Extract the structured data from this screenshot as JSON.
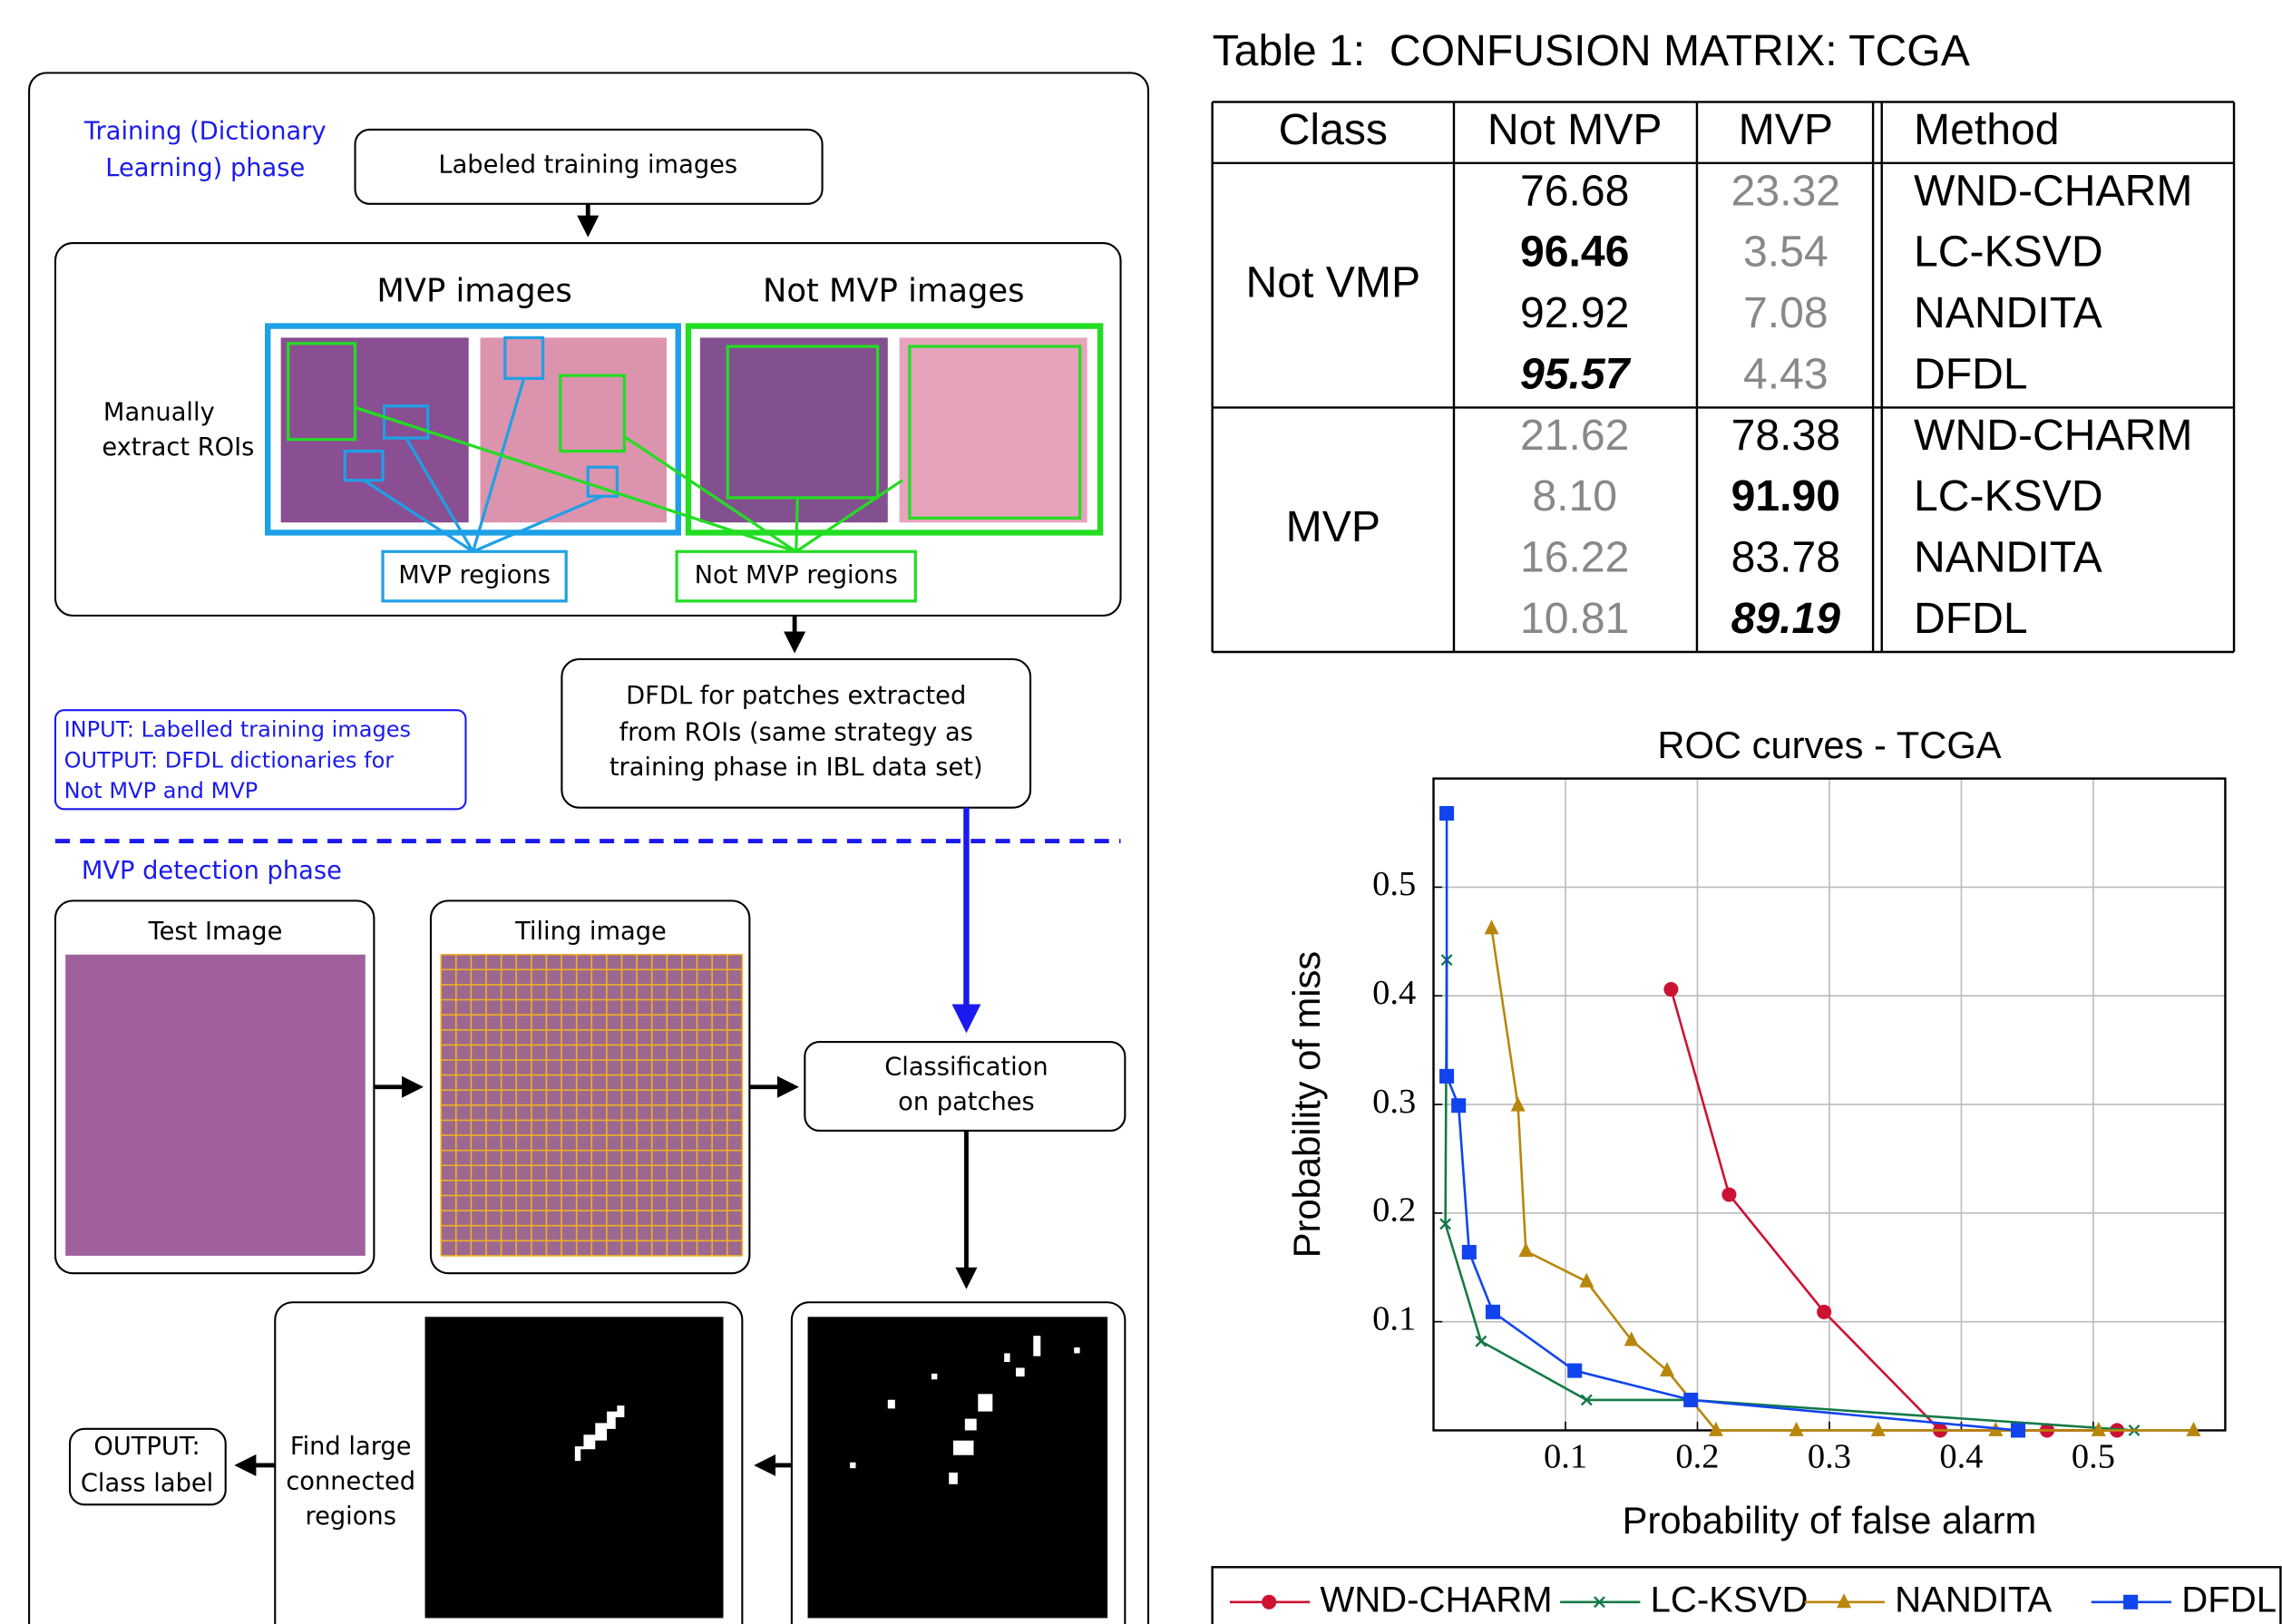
{
  "diagram": {
    "training_phase": [
      "Training (Dictionary",
      "Learning) phase"
    ],
    "labeled_training_images": "Labeled training images",
    "mvp_images": "MVP images",
    "not_mvp_images": "Not MVP images",
    "manual_step": [
      "Manually",
      "extract ROIs"
    ],
    "mvp_regions": "MVP regions",
    "not_mvp_regions": "Not MVP regions",
    "dfdl_step": [
      "DFDL for patches extracted",
      "from ROIs (same strategy as",
      "training phase in IBL data set)"
    ],
    "io_note": [
      "INPUT: Labelled training images",
      "OUTPUT: DFDL dictionaries for",
      "Not MVP and MVP"
    ],
    "detection_phase": "MVP detection phase",
    "test_image": "Test Image",
    "tiling_image": "Tiling image",
    "classification": [
      "Classification",
      "on patches"
    ],
    "find_regions": [
      "Find large",
      "connected",
      "regions"
    ],
    "output": [
      "OUTPUT:",
      "Class label"
    ]
  },
  "table": {
    "title": "Table 1:  CONFUSION MATRIX: TCGA",
    "header": [
      "Class",
      "Not MVP",
      "MVP",
      "Method"
    ],
    "groups": [
      {
        "class": "Not VMP",
        "rows": [
          [
            "76.68",
            "23.32",
            "WND-CHARM"
          ],
          [
            "96.46",
            "3.54",
            "LC-KSVD"
          ],
          [
            "92.92",
            "7.08",
            "NANDITA"
          ],
          [
            "95.57",
            "4.43",
            "DFDL"
          ]
        ]
      },
      {
        "class": "MVP",
        "rows": [
          [
            "21.62",
            "78.38",
            "WND-CHARM"
          ],
          [
            "8.10",
            "91.90",
            "LC-KSVD"
          ],
          [
            "16.22",
            "83.78",
            "NANDITA"
          ],
          [
            "10.81",
            "89.19",
            "DFDL"
          ]
        ]
      }
    ]
  },
  "chart_data": {
    "type": "line",
    "title": "ROC curves - TCGA",
    "x_label": "Probability of false alarm",
    "y_label": "Probability of miss",
    "xlim": [
      0,
      0.6
    ],
    "ylim": [
      0,
      0.6
    ],
    "xticks": [
      0.1,
      0.2,
      0.3,
      0.4,
      0.5
    ],
    "yticks": [
      0.1,
      0.2,
      0.3,
      0.4,
      0.5
    ],
    "grid": true,
    "legend": "below",
    "series": [
      {
        "name": "WND-CHARM",
        "color": "#cc1133",
        "marker": "circle",
        "x": [
          0.18,
          0.224,
          0.296,
          0.384,
          0.465,
          0.518
        ],
        "values": [
          0.406,
          0.217,
          0.109,
          0,
          0,
          0
        ]
      },
      {
        "name": "LC-KSVD",
        "color": "#147a46",
        "marker": "x",
        "x": [
          0.01,
          0.009,
          0.036,
          0.116,
          0.195,
          0.531
        ],
        "values": [
          0.433,
          0.19,
          0.082,
          0.028,
          0.028,
          0
        ]
      },
      {
        "name": "NANDITA",
        "color": "#b8860b",
        "marker": "triangle",
        "x": [
          0.044,
          0.064,
          0.07,
          0.116,
          0.15,
          0.177,
          0.214,
          0.275,
          0.337,
          0.426,
          0.504,
          0.576
        ],
        "values": [
          0.462,
          0.299,
          0.165,
          0.137,
          0.083,
          0.055,
          0,
          0,
          0,
          0,
          0,
          0
        ]
      },
      {
        "name": "DFDL",
        "color": "#1144ee",
        "marker": "square",
        "x": [
          0.01,
          0.01,
          0.019,
          0.027,
          0.045,
          0.107,
          0.195,
          0.443
        ],
        "values": [
          0.568,
          0.326,
          0.299,
          0.164,
          0.109,
          0.055,
          0.028,
          0
        ]
      }
    ]
  }
}
